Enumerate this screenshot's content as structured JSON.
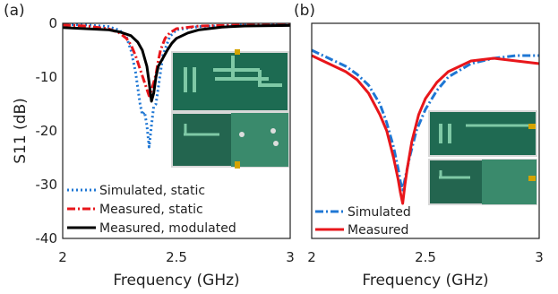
{
  "chart_data": [
    {
      "type": "line",
      "panel_label": "(a)",
      "xlabel": "Frequency (GHz)",
      "ylabel": "S11 (dB)",
      "xlim": [
        2,
        3
      ],
      "ylim": [
        -40,
        0
      ],
      "xticks": [
        "2",
        "2.5",
        "3"
      ],
      "yticks": [
        "0",
        "-10",
        "-20",
        "-30",
        "-40"
      ],
      "legend_position": "bottom-left",
      "series": [
        {
          "name": "Simulated, static",
          "color": "#1f77d4",
          "style": "dotted",
          "x": [
            2.0,
            2.1,
            2.2,
            2.25,
            2.28,
            2.3,
            2.32,
            2.34,
            2.35,
            2.36,
            2.37,
            2.38,
            2.39,
            2.4,
            2.41,
            2.42,
            2.44,
            2.47,
            2.5,
            2.6,
            2.8,
            3.0
          ],
          "y": [
            -0.2,
            -0.3,
            -0.6,
            -1.3,
            -2.5,
            -5,
            -9,
            -15,
            -17,
            -16.5,
            -19,
            -23,
            -19,
            -15.5,
            -15,
            -12,
            -6,
            -2.5,
            -1.2,
            -0.6,
            -0.3,
            -0.2
          ]
        },
        {
          "name": "Measured, static",
          "color": "#e8161b",
          "style": "dashdot",
          "x": [
            2.0,
            2.1,
            2.2,
            2.25,
            2.28,
            2.3,
            2.32,
            2.34,
            2.36,
            2.38,
            2.39,
            2.4,
            2.41,
            2.42,
            2.43,
            2.45,
            2.47,
            2.5,
            2.6,
            2.8,
            3.0
          ],
          "y": [
            -0.3,
            -0.5,
            -1,
            -1.8,
            -2.8,
            -4,
            -6,
            -8.5,
            -11,
            -13.5,
            -12.5,
            -11,
            -9.5,
            -7,
            -5,
            -2.8,
            -1.8,
            -1,
            -0.5,
            -0.3,
            -0.3
          ]
        },
        {
          "name": "Measured, modulated",
          "color": "#000000",
          "style": "solid",
          "x": [
            2.0,
            2.1,
            2.2,
            2.25,
            2.3,
            2.33,
            2.35,
            2.37,
            2.38,
            2.39,
            2.4,
            2.41,
            2.42,
            2.44,
            2.46,
            2.48,
            2.5,
            2.55,
            2.6,
            2.7,
            2.8,
            3.0
          ],
          "y": [
            -0.8,
            -1,
            -1.2,
            -1.6,
            -2.3,
            -3.5,
            -5,
            -8,
            -11,
            -14.5,
            -13,
            -10,
            -8,
            -6.5,
            -5,
            -3.7,
            -2.8,
            -1.8,
            -1.2,
            -0.7,
            -0.5,
            -0.4
          ]
        }
      ]
    },
    {
      "type": "line",
      "panel_label": "(b)",
      "xlabel": "Frequency (GHz)",
      "ylabel": "",
      "xlim": [
        2,
        3
      ],
      "ylim": [
        -40,
        0
      ],
      "xticks": [
        "2",
        "2.5",
        "3"
      ],
      "yticks": [],
      "legend_position": "bottom-left",
      "series": [
        {
          "name": "Simulated",
          "color": "#1f77d4",
          "style": "dashdot",
          "x": [
            2.0,
            2.05,
            2.1,
            2.15,
            2.2,
            2.25,
            2.3,
            2.33,
            2.36,
            2.38,
            2.39,
            2.4,
            2.41,
            2.43,
            2.46,
            2.5,
            2.55,
            2.6,
            2.7,
            2.8,
            2.9,
            3.0
          ],
          "y": [
            -5,
            -6,
            -7,
            -8,
            -9.5,
            -11.5,
            -15,
            -18.5,
            -23,
            -27,
            -29.5,
            -31,
            -29,
            -25,
            -20,
            -16,
            -12.5,
            -10,
            -7.5,
            -6.5,
            -6,
            -6
          ]
        },
        {
          "name": "Measured",
          "color": "#e8161b",
          "style": "solid",
          "x": [
            2.0,
            2.05,
            2.1,
            2.15,
            2.2,
            2.25,
            2.3,
            2.33,
            2.36,
            2.38,
            2.39,
            2.4,
            2.41,
            2.42,
            2.44,
            2.47,
            2.5,
            2.55,
            2.6,
            2.7,
            2.8,
            2.9,
            3.0
          ],
          "y": [
            -6,
            -7,
            -8,
            -9,
            -10.5,
            -13,
            -17,
            -20,
            -25,
            -29,
            -31.5,
            -33.5,
            -30,
            -27,
            -22,
            -17,
            -14,
            -11,
            -9,
            -7,
            -6.5,
            -7,
            -7.5
          ]
        }
      ]
    }
  ]
}
